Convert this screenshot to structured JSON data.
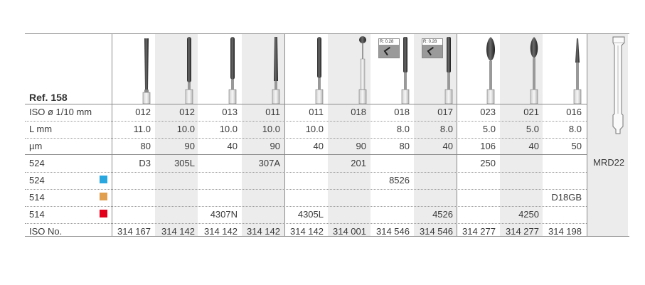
{
  "table": {
    "ref_label": "Ref. 158",
    "row_labels": [
      "ISO ø 1/10 mm",
      "L mm",
      "µm",
      "524",
      "524",
      "514",
      "514",
      "ISO No."
    ],
    "row_colors": {
      "r4": "#29a8e0",
      "r5": "#e0a050",
      "r6": "#e2001a"
    },
    "columns": [
      {
        "iso": "012",
        "l": "11.0",
        "um": "80",
        "r524a": "D3",
        "r524b": "",
        "r514a": "",
        "r514b": "",
        "iso_no": "314 167"
      },
      {
        "iso": "012",
        "l": "10.0",
        "um": "90",
        "r524a": "305L",
        "r524b": "",
        "r514a": "",
        "r514b": "",
        "iso_no": "314 142"
      },
      {
        "iso": "013",
        "l": "10.0",
        "um": "40",
        "r524a": "",
        "r524b": "",
        "r514a": "",
        "r514b": "4307N",
        "iso_no": "314 142"
      },
      {
        "iso": "011",
        "l": "10.0",
        "um": "90",
        "r524a": "307A",
        "r524b": "",
        "r514a": "",
        "r514b": "",
        "iso_no": "314 142"
      },
      {
        "iso": "011",
        "l": "10.0",
        "um": "40",
        "r524a": "",
        "r524b": "",
        "r514a": "",
        "r514b": "4305L",
        "iso_no": "314 142"
      },
      {
        "iso": "018",
        "l": "",
        "um": "90",
        "r524a": "201",
        "r524b": "",
        "r514a": "",
        "r514b": "",
        "iso_no": "314 001"
      },
      {
        "iso": "018",
        "l": "8.0",
        "um": "80",
        "r524a": "",
        "r524b": "8526",
        "r514a": "",
        "r514b": "",
        "iso_no": "314 546"
      },
      {
        "iso": "017",
        "l": "8.0",
        "um": "40",
        "r524a": "",
        "r524b": "",
        "r514a": "",
        "r514b": "4526",
        "iso_no": "314 546"
      },
      {
        "iso": "023",
        "l": "5.0",
        "um": "106",
        "r524a": "250",
        "r524b": "",
        "r514a": "",
        "r514b": "",
        "iso_no": "314 277"
      },
      {
        "iso": "021",
        "l": "5.0",
        "um": "40",
        "r524a": "",
        "r524b": "",
        "r514a": "",
        "r514b": "4250",
        "iso_no": "314 277"
      },
      {
        "iso": "016",
        "l": "8.0",
        "um": "50",
        "r524a": "",
        "r524b": "",
        "r514a": "D18GB",
        "r514b": "",
        "iso_no": "314 198"
      }
    ],
    "extra_label": "MRD22",
    "radius_badges": [
      "R: 0.28",
      "R: 0.28"
    ]
  },
  "icons": [
    "tapered-bur-icon",
    "cylinder-bur-icon",
    "ball-bur-icon",
    "flame-bur-icon",
    "radius-detail-icon",
    "adapter-icon"
  ]
}
